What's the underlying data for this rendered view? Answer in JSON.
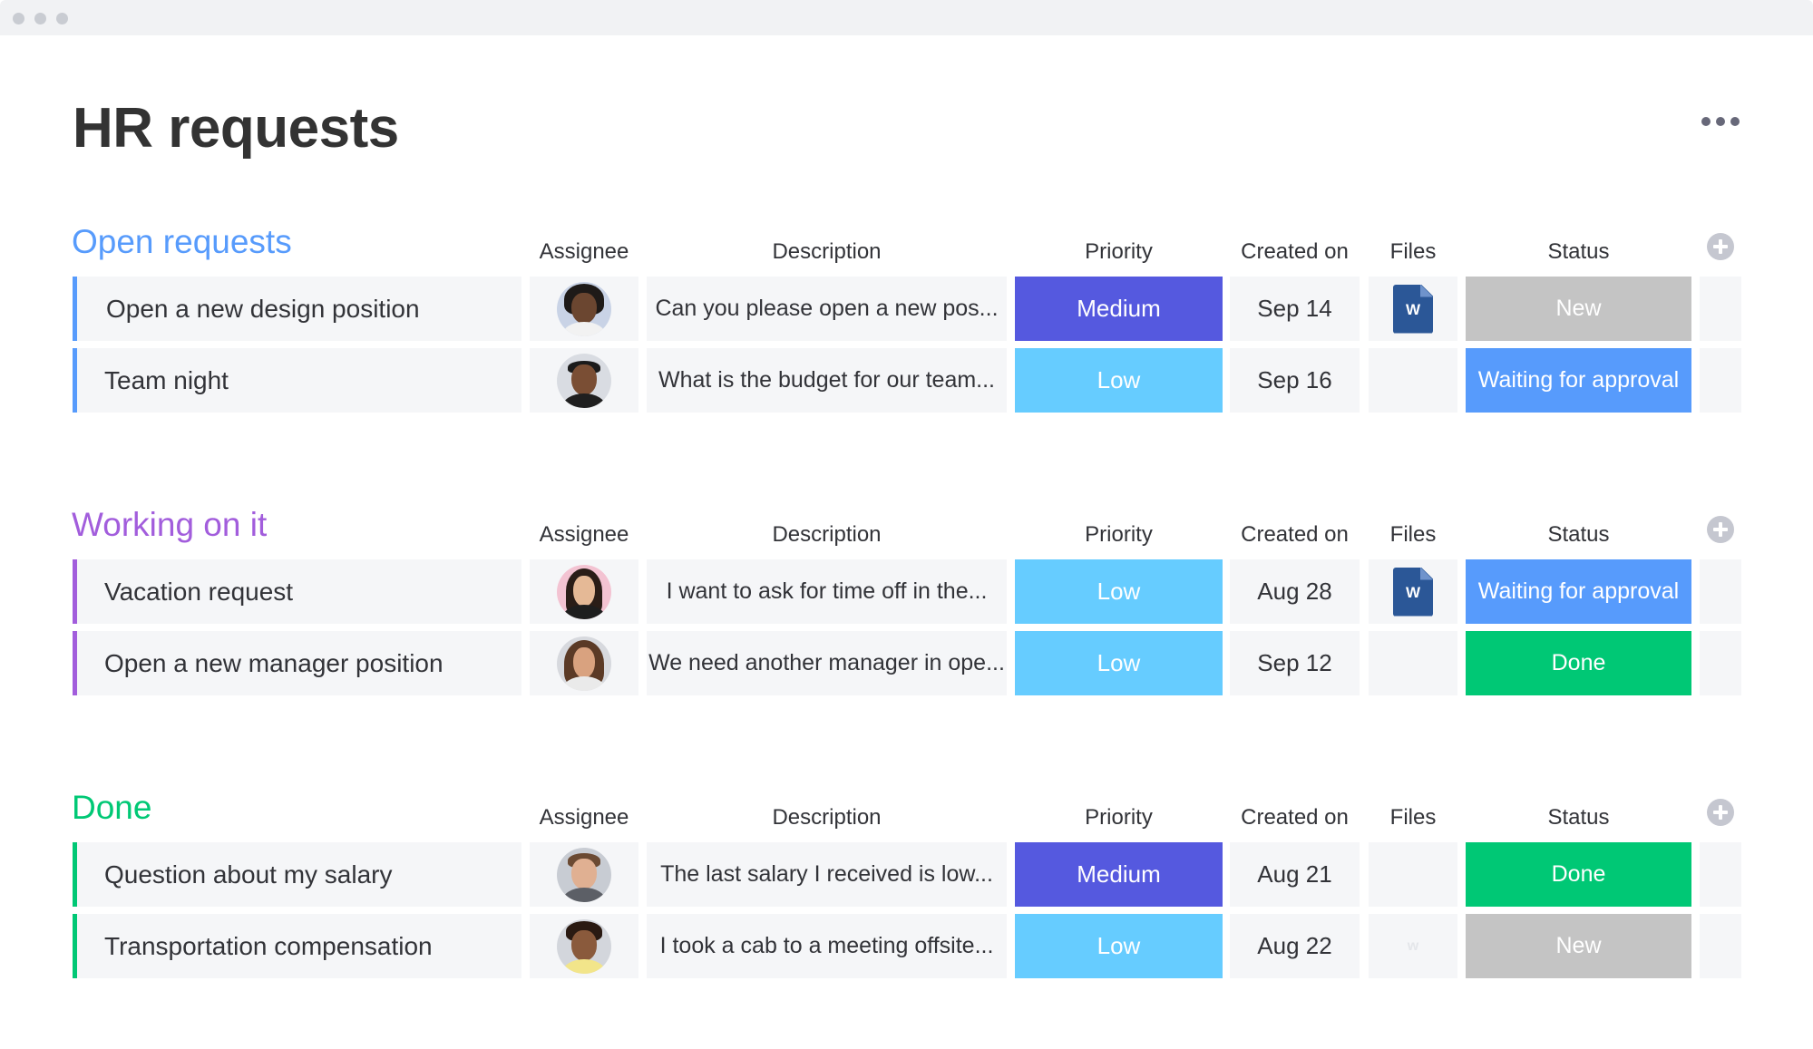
{
  "title": "HR requests",
  "colors": {
    "open_requests": "#579bfc",
    "working_on_it": "#a25ddc",
    "done_group": "#00c875",
    "medium": "#5559df",
    "low": "#66ccff",
    "new": "#c4c4c4",
    "waiting": "#579bfc",
    "done_status": "#00c875"
  },
  "columns": {
    "assignee": "Assignee",
    "description": "Description",
    "priority": "Priority",
    "created": "Created on",
    "files": "Files",
    "status": "Status"
  },
  "groups": [
    {
      "title": "Open requests",
      "color": "#579bfc",
      "rows": [
        {
          "name": "Open a new design position",
          "assignee_icon": "avatar-woman-curly-hair",
          "description": "Can you please open a new pos...",
          "priority": "Medium",
          "created": "Sep 14",
          "file": "W",
          "status": "New"
        },
        {
          "name": "Team night",
          "assignee_icon": "avatar-man-beard",
          "description": "What is the budget for our team...",
          "priority": "Low",
          "created": "Sep 16",
          "file": "",
          "status": "Waiting for approval"
        }
      ]
    },
    {
      "title": "Working on it",
      "color": "#a25ddc",
      "rows": [
        {
          "name": "Vacation request",
          "assignee_icon": "avatar-woman-dark-hair",
          "description": "I want to ask for time off in the...",
          "priority": "Low",
          "created": "Aug 28",
          "file": "W",
          "status": "Waiting for approval"
        },
        {
          "name": "Open a new manager position",
          "assignee_icon": "avatar-woman-long-hair",
          "description": "We need another manager in ope...",
          "priority": "Low",
          "created": "Sep 12",
          "file": "",
          "status": "Done"
        }
      ]
    },
    {
      "title": "Done",
      "color": "#00c875",
      "rows": [
        {
          "name": "Question about my salary",
          "assignee_icon": "avatar-man-short-hair",
          "description": "The last salary I received is low...",
          "priority": "Medium",
          "created": "Aug 21",
          "file": "",
          "status": "Done"
        },
        {
          "name": "Transportation compensation",
          "assignee_icon": "avatar-man-curly-hair",
          "description": "I took a cab to a meeting offsite...",
          "priority": "Low",
          "created": "Aug 22",
          "file": "w",
          "status": "New"
        }
      ]
    }
  ]
}
